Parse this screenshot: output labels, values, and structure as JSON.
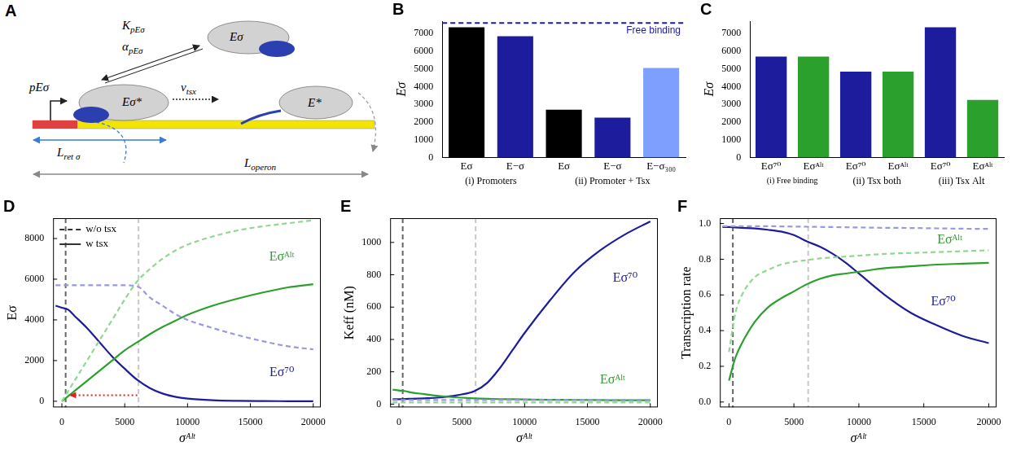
{
  "diagram": {
    "panel": "A",
    "labels": {
      "rate_constant": {
        "text": "K",
        "sub": "pEσ"
      },
      "cooperativity": {
        "text": "α",
        "sub": "pEσ"
      },
      "free_holoenzyme": "Eσ",
      "promoter_complex": "pEσ",
      "bound_holoenzyme": "Eσ*",
      "elongation_rate": {
        "text": "v",
        "sub": "tsx"
      },
      "core_enzyme": "E*",
      "retention_length": {
        "text": "L",
        "sub": "ret σ"
      },
      "operon_length": {
        "text": "L",
        "sub": "operon"
      }
    }
  },
  "chart_data": [
    {
      "panel": "B",
      "type": "bar",
      "ylabel": "Eσ",
      "categories": [
        "Eσ",
        "E−σ",
        "Eσ",
        "E−σ",
        "E−σ₃₀₀"
      ],
      "values": [
        7350,
        6850,
        2700,
        2250,
        5050
      ],
      "colors": [
        "#000000",
        "#1c1c9c",
        "#000000",
        "#1c1c9c",
        "#7f9fff"
      ],
      "groups": [
        {
          "label": "(i) Promoters",
          "span": [
            0,
            1
          ]
        },
        {
          "label": "(ii) Promoter + Tsx",
          "span": [
            2,
            4
          ]
        }
      ],
      "reference_line": {
        "value": 7600,
        "label": "Free binding",
        "color": "#1c1c9c",
        "line_style": "dashed"
      },
      "ylim": [
        0,
        7700
      ],
      "yticks": [
        0,
        1000,
        2000,
        3000,
        4000,
        5000,
        6000,
        7000
      ],
      "grid": false
    },
    {
      "panel": "C",
      "type": "bar",
      "ylabel": "Eσ",
      "categories": [
        "Eσ⁷⁰",
        "Eσᴬˡᵗ",
        "Eσ⁷⁰",
        "Eσᴬˡᵗ",
        "Eσ⁷⁰",
        "Eσᴬˡᵗ"
      ],
      "values": [
        5700,
        5700,
        4850,
        4850,
        7350,
        3250
      ],
      "colors": [
        "#1c1c9c",
        "#2ca02c",
        "#1c1c9c",
        "#2ca02c",
        "#1c1c9c",
        "#2ca02c"
      ],
      "groups": [
        {
          "label": "(i) Free binding",
          "span": [
            0,
            1
          ]
        },
        {
          "label": "(ii) Tsx both",
          "span": [
            2,
            3
          ]
        },
        {
          "label": "(iii) Tsx Alt",
          "span": [
            4,
            5
          ]
        }
      ],
      "ylim": [
        0,
        7700
      ],
      "yticks": [
        0,
        1000,
        2000,
        3000,
        4000,
        5000,
        6000,
        7000
      ],
      "grid": false
    },
    {
      "panel": "D",
      "type": "line",
      "xlabel": "σᴬˡᵗ",
      "ylabel": "Eσ",
      "x": [
        -500,
        0,
        500,
        1000,
        2000,
        3000,
        4000,
        5000,
        6000,
        7000,
        8000,
        9000,
        10000,
        12000,
        14000,
        16000,
        18000,
        20000
      ],
      "series": [
        {
          "color": "#90d890",
          "line_style": "dashed",
          "values": [
            null,
            0,
            500,
            1000,
            2000,
            3000,
            4000,
            5000,
            5900,
            6500,
            7000,
            7400,
            7700,
            8100,
            8400,
            8600,
            8750,
            8900
          ]
        },
        {
          "color": "#2ca02c",
          "line_style": "solid",
          "values": [
            null,
            0,
            250,
            500,
            1000,
            1500,
            2000,
            2500,
            2900,
            3300,
            3650,
            3950,
            4250,
            4700,
            5050,
            5350,
            5600,
            5750
          ]
        },
        {
          "color": "#9999e0",
          "line_style": "dashed",
          "values": [
            5700,
            5700,
            5700,
            5700,
            5700,
            5700,
            5700,
            5700,
            5650,
            5100,
            4700,
            4300,
            4000,
            3600,
            3250,
            2950,
            2700,
            2550
          ]
        },
        {
          "color": "#1c1c9c",
          "line_style": "solid",
          "values": [
            4700,
            4600,
            4500,
            4200,
            3600,
            2900,
            2200,
            1600,
            1050,
            650,
            380,
            220,
            130,
            50,
            20,
            10,
            5,
            0
          ]
        }
      ],
      "vlines": [
        {
          "x": 300,
          "color": "#666666",
          "line_style": "dashed"
        },
        {
          "x": 6100,
          "color": "#c8c8c8",
          "line_style": "dashed"
        }
      ],
      "annotations": [
        {
          "text": "Eσᴬˡᵗ",
          "x": 17500,
          "y": 7100,
          "color": "#2ca02c"
        },
        {
          "text": "Eσ⁷⁰",
          "x": 17500,
          "y": 1400,
          "color": "#1c1c9c"
        }
      ],
      "key": [
        {
          "text": "w/o tsx",
          "line_style": "dashed"
        },
        {
          "text": "w tsx",
          "line_style": "solid"
        }
      ],
      "arrow": {
        "from": [
          6000,
          300
        ],
        "to": [
          600,
          300
        ],
        "color": "#e02020",
        "line_style": "dotted"
      },
      "xlim": [
        -700,
        20600
      ],
      "xticks": [
        0,
        5000,
        10000,
        15000,
        20000
      ],
      "ylim": [
        -300,
        9000
      ],
      "yticks": [
        0,
        2000,
        4000,
        6000,
        8000
      ],
      "grid": false
    },
    {
      "panel": "E",
      "type": "line",
      "xlabel": "σᴬˡᵗ",
      "ylabel": "Keff (nM)",
      "x": [
        -500,
        0,
        500,
        1000,
        2000,
        3000,
        4000,
        5000,
        6000,
        7000,
        8000,
        9000,
        10000,
        12000,
        14000,
        16000,
        18000,
        20000
      ],
      "series": [
        {
          "color": "#9999e0",
          "line_style": "dashed",
          "values": [
            25,
            25,
            25,
            25,
            25,
            25,
            25,
            25,
            25,
            25,
            25,
            25,
            25,
            25,
            25,
            25,
            25,
            25
          ]
        },
        {
          "color": "#90d890",
          "line_style": "dashed",
          "values": [
            10,
            10,
            10,
            10,
            10,
            10,
            10,
            10,
            10,
            10,
            10,
            10,
            10,
            10,
            10,
            10,
            10,
            10
          ]
        },
        {
          "color": "#2ca02c",
          "line_style": "solid",
          "values": [
            90,
            85,
            80,
            72,
            62,
            52,
            45,
            40,
            36,
            33,
            31,
            30,
            29,
            27,
            26,
            25,
            24,
            24
          ]
        },
        {
          "color": "#1c1c9c",
          "line_style": "solid",
          "values": [
            30,
            30,
            32,
            33,
            36,
            40,
            48,
            60,
            80,
            130,
            220,
            330,
            440,
            640,
            820,
            950,
            1050,
            1130
          ]
        }
      ],
      "vlines": [
        {
          "x": 300,
          "color": "#666666",
          "line_style": "dashed"
        },
        {
          "x": 6100,
          "color": "#c8c8c8",
          "line_style": "dashed"
        }
      ],
      "annotations": [
        {
          "text": "Eσ⁷⁰",
          "x": 18000,
          "y": 780,
          "color": "#1c1c9c"
        },
        {
          "text": "Eσᴬˡᵗ",
          "x": 17000,
          "y": 150,
          "color": "#2ca02c"
        }
      ],
      "xlim": [
        -700,
        20600
      ],
      "xticks": [
        0,
        5000,
        10000,
        15000,
        20000
      ],
      "ylim": [
        -20,
        1150
      ],
      "yticks": [
        0,
        200,
        400,
        600,
        800,
        1000
      ],
      "grid": false
    },
    {
      "panel": "F",
      "type": "line",
      "xlabel": "σᴬˡᵗ",
      "ylabel": "Transcription rate",
      "x": [
        -500,
        0,
        500,
        1000,
        2000,
        3000,
        4000,
        5000,
        6000,
        7000,
        8000,
        9000,
        10000,
        12000,
        14000,
        16000,
        18000,
        20000
      ],
      "series": [
        {
          "color": "#9999e0",
          "line_style": "dashed",
          "values": [
            0.985,
            0.985,
            0.985,
            0.985,
            0.985,
            0.985,
            0.984,
            0.983,
            0.982,
            0.981,
            0.98,
            0.979,
            0.978,
            0.976,
            0.975,
            0.973,
            0.971,
            0.97
          ]
        },
        {
          "color": "#90d890",
          "line_style": "dashed",
          "values": [
            null,
            0.28,
            0.5,
            0.6,
            0.7,
            0.74,
            0.77,
            0.785,
            0.795,
            0.805,
            0.81,
            0.815,
            0.82,
            0.83,
            0.835,
            0.84,
            0.845,
            0.85
          ]
        },
        {
          "color": "#2ca02c",
          "line_style": "solid",
          "values": [
            null,
            0.12,
            0.25,
            0.33,
            0.45,
            0.53,
            0.58,
            0.62,
            0.66,
            0.69,
            0.71,
            0.72,
            0.73,
            0.75,
            0.76,
            0.77,
            0.775,
            0.78
          ]
        },
        {
          "color": "#1c1c9c",
          "line_style": "solid",
          "values": [
            0.98,
            0.98,
            0.978,
            0.976,
            0.972,
            0.965,
            0.955,
            0.935,
            0.9,
            0.87,
            0.83,
            0.78,
            0.72,
            0.6,
            0.5,
            0.43,
            0.37,
            0.33
          ]
        }
      ],
      "vlines": [
        {
          "x": 300,
          "color": "#666666",
          "line_style": "dashed"
        },
        {
          "x": 6100,
          "color": "#c8c8c8",
          "line_style": "dashed"
        }
      ],
      "annotations": [
        {
          "text": "Eσᴬˡᵗ",
          "x": 17000,
          "y": 0.907,
          "color": "#2ca02c"
        },
        {
          "text": "Eσ⁷⁰",
          "x": 16500,
          "y": 0.56,
          "color": "#1c1c9c"
        }
      ],
      "xlim": [
        -700,
        20600
      ],
      "xticks": [
        0,
        5000,
        10000,
        15000,
        20000
      ],
      "ylim": [
        -0.03,
        1.03
      ],
      "yticks": [
        {
          "value": 0,
          "label": "0.0"
        },
        0.2,
        0.4,
        0.6,
        0.8,
        {
          "value": 1,
          "label": "1.0"
        }
      ],
      "grid": false
    }
  ]
}
